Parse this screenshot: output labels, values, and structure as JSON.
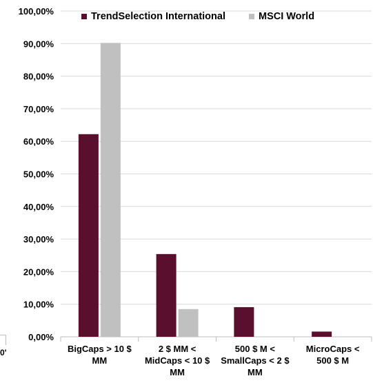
{
  "chart_data": {
    "type": "bar",
    "categories": [
      [
        "BigCaps > 10 $",
        "MM"
      ],
      [
        "2 $ MM <",
        "MidCaps < 10 $",
        "MM"
      ],
      [
        "500 $ M <",
        "SmallCaps < 2 $",
        "MM"
      ],
      [
        "MicroCaps <",
        "500 $ M"
      ]
    ],
    "series": [
      {
        "name": "TrendSelection International",
        "color": "#5a0f2e",
        "values": [
          62.2,
          25.4,
          9.1,
          1.6
        ]
      },
      {
        "name": "MSCI World",
        "color": "#c0c0c0",
        "values": [
          90.2,
          8.5,
          0,
          0
        ]
      }
    ],
    "ylim": [
      0,
      100
    ],
    "yticks": [
      "0,00%",
      "10,00%",
      "20,00%",
      "30,00%",
      "40,00%",
      "50,00%",
      "60,00%",
      "70,00%",
      "80,00%",
      "90,00%",
      "100,00%"
    ],
    "grid": true,
    "legend_position": "top"
  },
  "edge_fragment": "0'"
}
